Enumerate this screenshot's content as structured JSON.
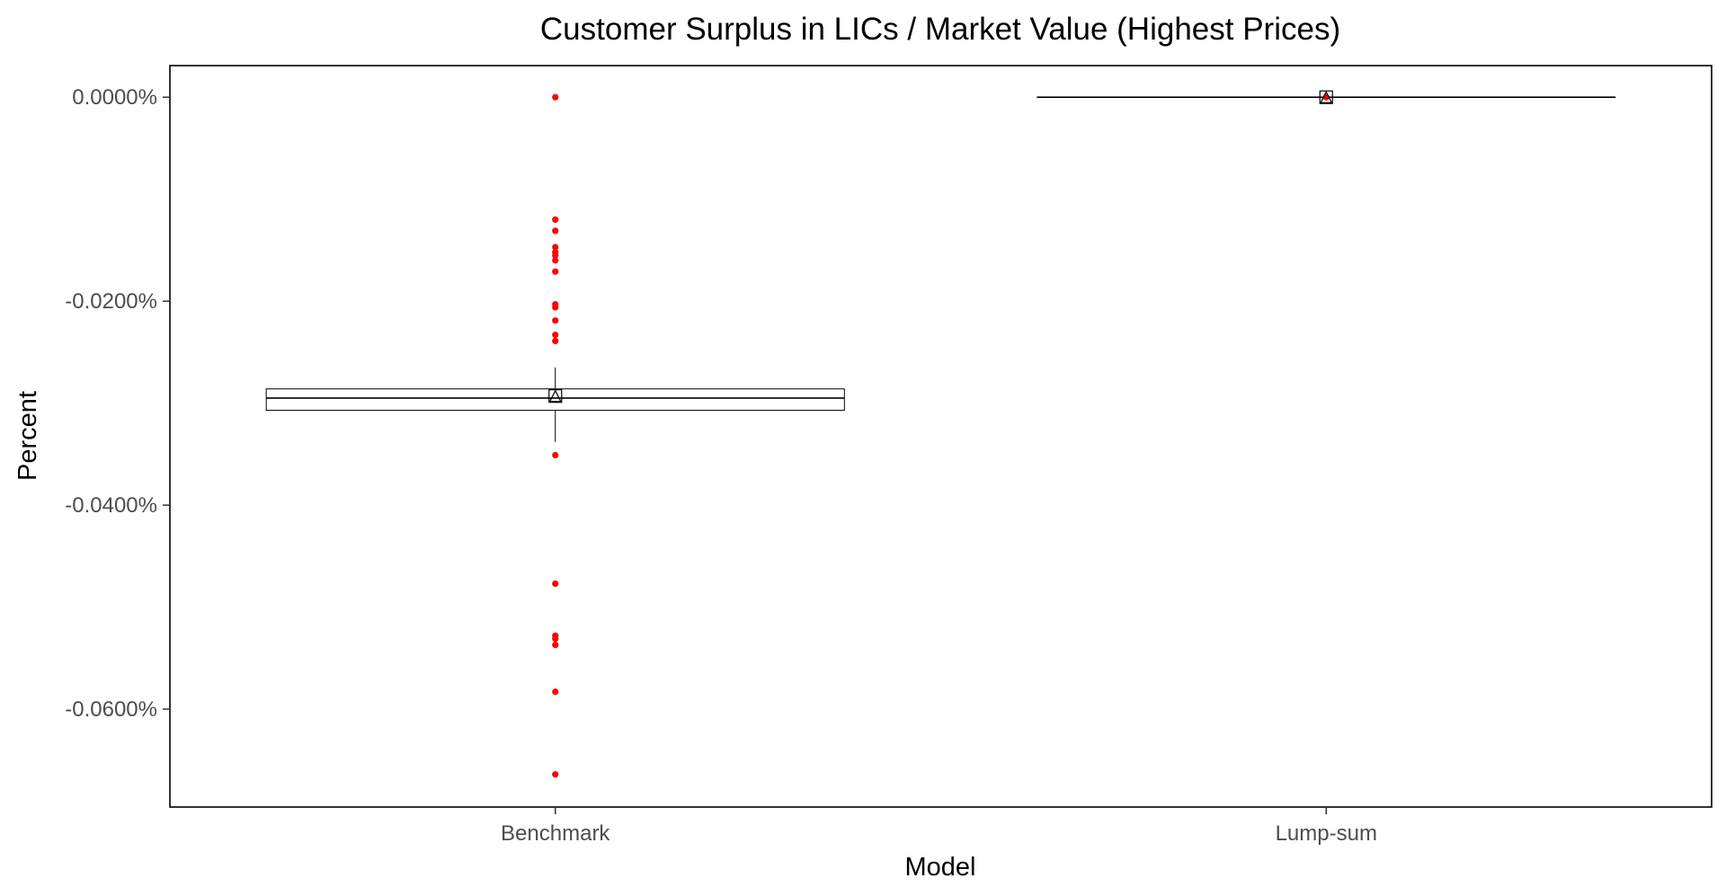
{
  "chart_data": {
    "type": "box",
    "title": "Customer Surplus in LICs / Market Value (Highest Prices)",
    "xlabel": "Model",
    "ylabel": "Percent",
    "categories": [
      "Benchmark",
      "Lump-sum"
    ],
    "yticks": [
      {
        "value": 0.0,
        "label": "0.0000%"
      },
      {
        "value": -0.02,
        "label": "-0.0200%"
      },
      {
        "value": -0.04,
        "label": "-0.0400%"
      },
      {
        "value": -0.06,
        "label": "-0.0600%"
      }
    ],
    "ylim": [
      -0.0696,
      0.0031
    ],
    "grid": false,
    "boxes": [
      {
        "category": "Benchmark",
        "median": -0.0295,
        "q1": -0.0307,
        "q3": -0.0286,
        "whisker_low": -0.0338,
        "whisker_high": -0.0265,
        "mean": -0.0293,
        "outliers": [
          0.0,
          -0.012,
          -0.0131,
          -0.0147,
          -0.0152,
          -0.0155,
          -0.016,
          -0.0171,
          -0.0203,
          -0.0206,
          -0.0219,
          -0.0233,
          -0.0239,
          -0.0351,
          -0.0477,
          -0.0528,
          -0.0531,
          -0.0537,
          -0.0583,
          -0.0664
        ]
      },
      {
        "category": "Lump-sum",
        "median": 0.0,
        "q1": 0.0,
        "q3": 0.0,
        "whisker_low": 0.0,
        "whisker_high": 0.0,
        "mean": 0.0,
        "outliers": [
          0.0
        ]
      }
    ],
    "colors": {
      "outlier": "#ff0000",
      "box": "#000000",
      "panel_border": "#000000"
    }
  }
}
